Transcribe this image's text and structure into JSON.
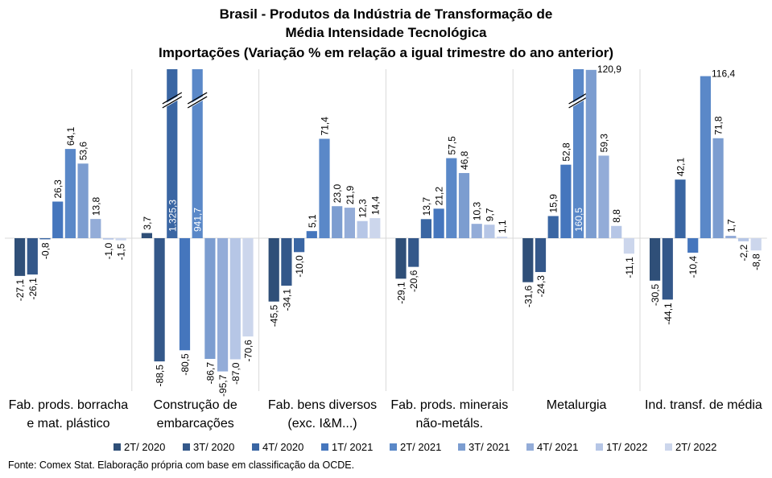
{
  "title_lines": [
    "Brasil - Produtos da Indústria de Transformação  de",
    "Média Intensidade Tecnológica",
    "Importações (Variação % em relação a igual trimestre do ano anterior)"
  ],
  "source": "Fonte: Comex Stat. Elaboração própria com base em classificação da OCDE.",
  "colors": [
    "#2f4f78",
    "#34588a",
    "#3a66a3",
    "#4576bd",
    "#5a88c8",
    "#7c9dd0",
    "#93acd8",
    "#b6c6e6",
    "#ccd6ec"
  ],
  "chart_data": {
    "type": "bar",
    "series_names": [
      "2T/ 2020",
      "3T/ 2020",
      "4T/ 2020",
      "1T/ 2021",
      "2T/ 2021",
      "3T/ 2021",
      "4T/ 2021",
      "1T/ 2022",
      "2T/ 2022"
    ],
    "groups": [
      {
        "label": [
          "Fab. prods. borracha",
          "e mat. plástico"
        ],
        "values": [
          -27.1,
          -26.1,
          -0.8,
          26.3,
          64.1,
          53.6,
          13.8,
          -1.0,
          -1.5
        ],
        "labels": [
          "-27,1",
          "-26,1",
          "-0,8",
          "26,3",
          "64,1",
          "53,6",
          "13,8",
          "-1,0",
          "-1,5"
        ]
      },
      {
        "label": [
          "Construção de",
          "embarcações"
        ],
        "values": [
          3.7,
          -88.5,
          1325.3,
          -80.5,
          941.7,
          -86.7,
          -95.7,
          -87.0,
          -70.6
        ],
        "labels": [
          "3,7",
          "-88,5",
          "1.325,3",
          "-80,5",
          "941,7",
          "-86,7",
          "-95,7",
          "-87,0",
          "-70,6"
        ]
      },
      {
        "label": [
          "Fab. bens diversos",
          "(exc. I&M...)"
        ],
        "values": [
          -45.5,
          -34.1,
          -10.0,
          5.1,
          71.4,
          23.0,
          21.9,
          12.3,
          14.4
        ],
        "labels": [
          "-45,5",
          "-34,1",
          "-10,0",
          "5,1",
          "71,4",
          "23,0",
          "21,9",
          "12,3",
          "14,4"
        ]
      },
      {
        "label": [
          "Fab. prods. minerais",
          "não-metáls."
        ],
        "values": [
          -29.1,
          -20.6,
          13.7,
          21.2,
          57.5,
          46.8,
          10.3,
          9.7,
          1.1
        ],
        "labels": [
          "-29,1",
          "-20,6",
          "13,7",
          "21,2",
          "57,5",
          "46,8",
          "10,3",
          "9,7",
          "1,1"
        ]
      },
      {
        "label": [
          "Metalurgia"
        ],
        "values": [
          -31.6,
          -24.3,
          15.9,
          52.8,
          160.5,
          120.9,
          59.3,
          8.8,
          -11.1
        ],
        "labels": [
          "-31,6",
          "-24,3",
          "15,9",
          "52,8",
          "160,5",
          "120,9",
          "59,3",
          "8,8",
          "-11,1"
        ]
      },
      {
        "label": [
          "Ind. transf. de média"
        ],
        "values": [
          -30.5,
          -44.1,
          42.1,
          -10.4,
          116.4,
          71.8,
          1.7,
          -2.2,
          -8.8
        ],
        "labels": [
          "-30,5",
          "-44,1",
          "42,1",
          "-10,4",
          "116,4",
          "71,8",
          "1,7",
          "-2,2",
          "-8,8"
        ]
      }
    ],
    "ylim": [
      -100,
      120
    ],
    "axis_break": true,
    "legend_position": "bottom",
    "grid": false
  }
}
